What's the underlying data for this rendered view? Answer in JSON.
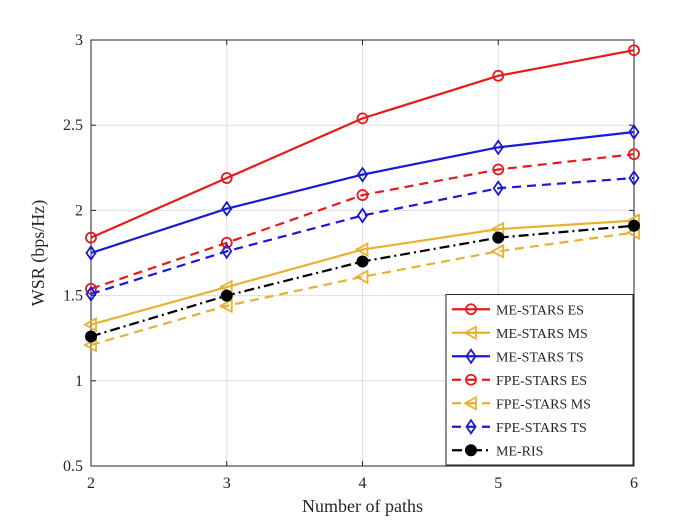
{
  "chart_data": {
    "type": "line",
    "title": "",
    "xlabel": "Number of paths",
    "ylabel": "WSR (bps/Hz)",
    "x": [
      2,
      3,
      4,
      5,
      6
    ],
    "xlim": [
      2,
      6
    ],
    "ylim": [
      0.5,
      3
    ],
    "xticks": [
      "2",
      "3",
      "4",
      "5",
      "6"
    ],
    "yticks": [
      "0.5",
      "1",
      "1.5",
      "2",
      "2.5",
      "3"
    ],
    "grid": true,
    "legend_position": "bottom-right",
    "series": [
      {
        "name": "ME-STARS ES",
        "values": [
          1.84,
          2.19,
          2.54,
          2.79,
          2.94
        ],
        "color": "#e8191b",
        "dash": "solid",
        "marker": "circle"
      },
      {
        "name": "ME-STARS MS",
        "values": [
          1.33,
          1.55,
          1.77,
          1.89,
          1.94
        ],
        "color": "#e9b131",
        "dash": "solid",
        "marker": "triangle-left"
      },
      {
        "name": "ME-STARS TS",
        "values": [
          1.75,
          2.01,
          2.21,
          2.37,
          2.46
        ],
        "color": "#1919d6",
        "dash": "solid",
        "marker": "diamond"
      },
      {
        "name": "FPE-STARS ES",
        "values": [
          1.54,
          1.81,
          2.09,
          2.24,
          2.33
        ],
        "color": "#e8191b",
        "dash": "dashed",
        "marker": "circle"
      },
      {
        "name": "FPE-STARS MS",
        "values": [
          1.21,
          1.44,
          1.61,
          1.76,
          1.87
        ],
        "color": "#e9b131",
        "dash": "dashed",
        "marker": "triangle-left"
      },
      {
        "name": "FPE-STARS TS",
        "values": [
          1.51,
          1.76,
          1.97,
          2.13,
          2.19
        ],
        "color": "#1919d6",
        "dash": "dashed",
        "marker": "diamond"
      },
      {
        "name": "ME-RIS",
        "values": [
          1.26,
          1.5,
          1.7,
          1.84,
          1.91
        ],
        "color": "#000000",
        "dash": "dashdot",
        "marker": "filled-circle"
      }
    ]
  }
}
